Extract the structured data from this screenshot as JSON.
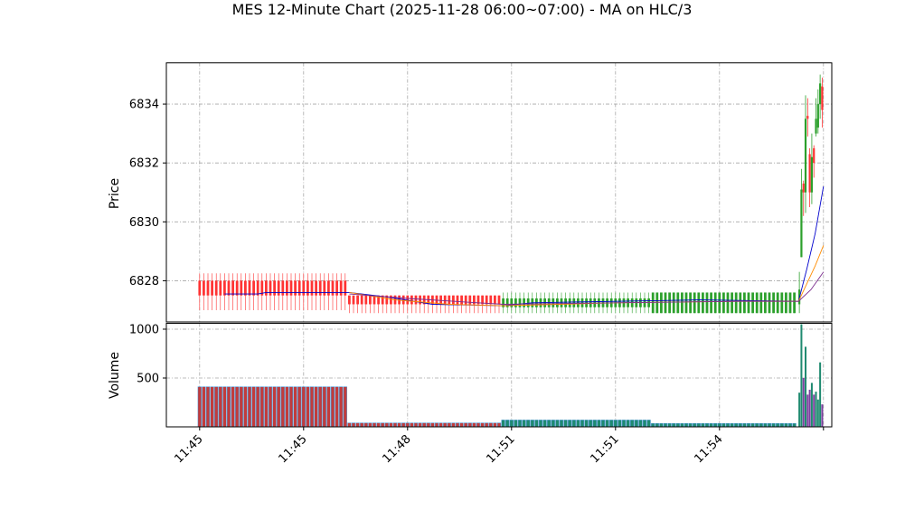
{
  "chart_data": {
    "type": "candlestick",
    "title": "MES 12-Minute Chart (2025-11-28 06:00~07:00) - MA on HLC/3",
    "grid": true,
    "price_panel": {
      "ylabel": "Price",
      "ylim": [
        6826.6,
        6835.4
      ],
      "yticks": [
        "6828",
        "6830",
        "6832",
        "6834"
      ],
      "ytick_values": [
        6828,
        6830,
        6832,
        6834
      ]
    },
    "volume_panel": {
      "ylabel": "Volume",
      "ylim": [
        0,
        1060
      ],
      "yticks": [
        "500",
        "1000"
      ],
      "ytick_values": [
        500,
        1000
      ]
    },
    "xlim": [
      -8,
      152
    ],
    "xticks": [
      {
        "x": 0,
        "label": "11:45"
      },
      {
        "x": 25,
        "label": "11:45"
      },
      {
        "x": 50,
        "label": "11:48"
      },
      {
        "x": 75,
        "label": "11:51"
      },
      {
        "x": 100,
        "label": "11:51"
      },
      {
        "x": 125,
        "label": "11:54"
      },
      {
        "x": 150,
        "label": ""
      }
    ],
    "segments": [
      {
        "start": 0,
        "count": 36,
        "open": 6828.0,
        "close": 6827.5,
        "high": 6828.25,
        "low": 6827.0,
        "volume": 410,
        "trend": "down",
        "bar_color": "#c23b3b"
      },
      {
        "start": 36,
        "count": 37,
        "open": 6827.5,
        "close": 6827.2,
        "high": 6827.5,
        "low": 6826.9,
        "volume": 40,
        "trend": "down",
        "bar_color": "#c23b3b"
      },
      {
        "start": 73,
        "count": 36,
        "open": 6827.1,
        "close": 6827.4,
        "high": 6827.6,
        "low": 6826.9,
        "volume": 70,
        "trend": "up",
        "bar_color": "#1f8a70"
      },
      {
        "start": 109,
        "count": 35,
        "open": 6826.9,
        "close": 6827.6,
        "high": 6827.6,
        "low": 6826.9,
        "volume": 35,
        "trend": "up",
        "bar_color": "#1f8a70"
      }
    ],
    "tail_bars": [
      {
        "x": 144.2,
        "open": 6827.2,
        "close": 6827.7,
        "high": 6828.3,
        "low": 6826.9,
        "volume": 350
      },
      {
        "x": 144.7,
        "open": 6828.8,
        "close": 6831.1,
        "high": 6831.8,
        "low": 6828.8,
        "volume": 1050
      },
      {
        "x": 145.2,
        "open": 6831.3,
        "close": 6831.0,
        "high": 6831.4,
        "low": 6830.2,
        "volume": 500
      },
      {
        "x": 145.7,
        "open": 6831.0,
        "close": 6833.5,
        "high": 6834.3,
        "low": 6830.3,
        "volume": 820
      },
      {
        "x": 146.2,
        "open": 6833.6,
        "close": 6833.5,
        "high": 6834.2,
        "low": 6832.9,
        "volume": 330
      },
      {
        "x": 146.7,
        "open": 6832.3,
        "close": 6831.0,
        "high": 6832.5,
        "low": 6830.5,
        "volume": 380
      },
      {
        "x": 147.2,
        "open": 6831.0,
        "close": 6832.2,
        "high": 6833.0,
        "low": 6830.6,
        "volume": 450
      },
      {
        "x": 147.7,
        "open": 6832.5,
        "close": 6832.0,
        "high": 6832.6,
        "low": 6831.5,
        "volume": 330
      },
      {
        "x": 148.2,
        "open": 6833.0,
        "close": 6833.5,
        "high": 6834.2,
        "low": 6832.9,
        "volume": 360
      },
      {
        "x": 148.7,
        "open": 6833.2,
        "close": 6834.0,
        "high": 6834.5,
        "low": 6833.0,
        "volume": 280
      },
      {
        "x": 149.2,
        "open": 6834.0,
        "close": 6834.7,
        "high": 6835.0,
        "low": 6833.5,
        "volume": 660
      },
      {
        "x": 149.7,
        "open": 6834.6,
        "close": 6833.8,
        "high": 6834.9,
        "low": 6833.2,
        "volume": 230
      }
    ],
    "ma_lines": [
      {
        "color": "#0000cc",
        "points": [
          [
            6,
            6827.55
          ],
          [
            14,
            6827.55
          ],
          [
            16,
            6827.6
          ],
          [
            36,
            6827.6
          ],
          [
            45,
            6827.45
          ],
          [
            56,
            6827.2
          ],
          [
            73,
            6827.15
          ],
          [
            80,
            6827.25
          ],
          [
            100,
            6827.3
          ],
          [
            120,
            6827.35
          ],
          [
            144,
            6827.3
          ],
          [
            146,
            6828.4
          ],
          [
            148,
            6829.6
          ],
          [
            150,
            6831.2
          ]
        ]
      },
      {
        "color": "#ff8c00",
        "points": [
          [
            36,
            6827.6
          ],
          [
            47,
            6827.35
          ],
          [
            60,
            6827.2
          ],
          [
            73,
            6827.15
          ],
          [
            100,
            6827.25
          ],
          [
            130,
            6827.3
          ],
          [
            144,
            6827.3
          ],
          [
            146,
            6827.9
          ],
          [
            148,
            6828.5
          ],
          [
            150,
            6829.2
          ]
        ]
      },
      {
        "color": "#7b2d8e",
        "points": [
          [
            36,
            6827.55
          ],
          [
            50,
            6827.4
          ],
          [
            73,
            6827.2
          ],
          [
            100,
            6827.25
          ],
          [
            130,
            6827.3
          ],
          [
            144,
            6827.3
          ],
          [
            147,
            6827.7
          ],
          [
            150,
            6828.3
          ]
        ]
      }
    ],
    "colors": {
      "up": "#2ca02c",
      "down": "#ff3333",
      "grid": "#a8a8a8"
    }
  }
}
